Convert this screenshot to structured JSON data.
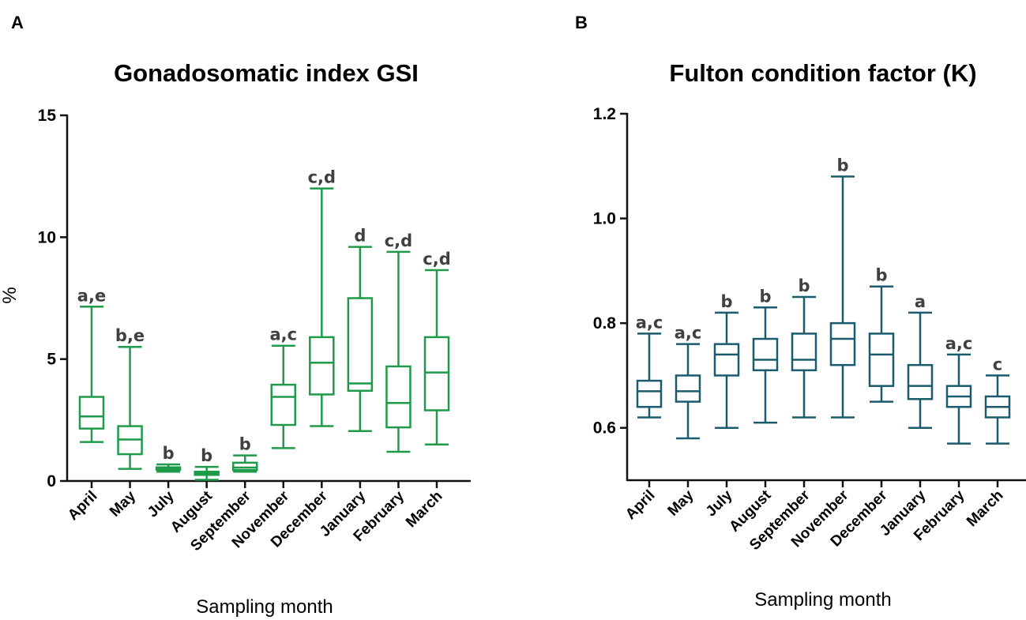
{
  "figure": {
    "panel_a_letter": "A",
    "panel_b_letter": "B"
  },
  "chart_data": [
    {
      "type": "box",
      "title": "Gonadosomatic index GSI",
      "xlabel": "Sampling month",
      "ylabel": "%",
      "ylim": [
        0,
        15
      ],
      "yticks": [
        0,
        5,
        10,
        15
      ],
      "color": "#1e9a4a",
      "categories": [
        "April",
        "May",
        "July",
        "August",
        "September",
        "November",
        "December",
        "January",
        "February",
        "March"
      ],
      "boxes": [
        {
          "min": 1.6,
          "q1": 2.15,
          "median": 2.65,
          "q3": 3.45,
          "max": 7.15
        },
        {
          "min": 0.5,
          "q1": 1.1,
          "median": 1.7,
          "q3": 2.25,
          "max": 5.5
        },
        {
          "min": 0.38,
          "q1": 0.46,
          "median": 0.52,
          "q3": 0.56,
          "max": 0.68
        },
        {
          "min": 0.05,
          "q1": 0.25,
          "median": 0.32,
          "q3": 0.38,
          "max": 0.58
        },
        {
          "min": 0.38,
          "q1": 0.45,
          "median": 0.55,
          "q3": 0.75,
          "max": 1.05
        },
        {
          "min": 1.35,
          "q1": 2.3,
          "median": 3.45,
          "q3": 3.95,
          "max": 5.55
        },
        {
          "min": 2.25,
          "q1": 3.55,
          "median": 4.85,
          "q3": 5.9,
          "max": 12.0
        },
        {
          "min": 2.05,
          "q1": 3.7,
          "median": 4.0,
          "q3": 7.5,
          "max": 9.6
        },
        {
          "min": 1.2,
          "q1": 2.2,
          "median": 3.2,
          "q3": 4.7,
          "max": 9.4
        },
        {
          "min": 1.5,
          "q1": 2.9,
          "median": 4.45,
          "q3": 5.9,
          "max": 8.65
        }
      ],
      "significance": [
        "a,e",
        "b,e",
        "b",
        "b",
        "b",
        "a,c",
        "c,d",
        "d",
        "c,d",
        "c,d"
      ]
    },
    {
      "type": "box",
      "title": "Fulton condition factor (K)",
      "xlabel": "Sampling month",
      "ylabel": "",
      "ylim": [
        0.5,
        1.2
      ],
      "yticks": [
        "0.6",
        "0.8",
        "1.0",
        "1.2"
      ],
      "color": "#1a5b6e",
      "categories": [
        "April",
        "May",
        "July",
        "August",
        "September",
        "November",
        "December",
        "January",
        "February",
        "March"
      ],
      "boxes": [
        {
          "min": 0.62,
          "q1": 0.64,
          "median": 0.67,
          "q3": 0.69,
          "max": 0.78
        },
        {
          "min": 0.58,
          "q1": 0.65,
          "median": 0.67,
          "q3": 0.7,
          "max": 0.76
        },
        {
          "min": 0.6,
          "q1": 0.7,
          "median": 0.74,
          "q3": 0.76,
          "max": 0.82
        },
        {
          "min": 0.61,
          "q1": 0.71,
          "median": 0.73,
          "q3": 0.77,
          "max": 0.83
        },
        {
          "min": 0.62,
          "q1": 0.71,
          "median": 0.73,
          "q3": 0.78,
          "max": 0.85
        },
        {
          "min": 0.62,
          "q1": 0.72,
          "median": 0.77,
          "q3": 0.8,
          "max": 1.08
        },
        {
          "min": 0.65,
          "q1": 0.68,
          "median": 0.74,
          "q3": 0.78,
          "max": 0.87
        },
        {
          "min": 0.6,
          "q1": 0.655,
          "median": 0.68,
          "q3": 0.72,
          "max": 0.82
        },
        {
          "min": 0.57,
          "q1": 0.64,
          "median": 0.66,
          "q3": 0.68,
          "max": 0.74
        },
        {
          "min": 0.57,
          "q1": 0.62,
          "median": 0.64,
          "q3": 0.66,
          "max": 0.7
        }
      ],
      "significance": [
        "a,c",
        "a,c",
        "b",
        "b",
        "b",
        "b",
        "b",
        "a",
        "a,c",
        "c"
      ]
    }
  ]
}
